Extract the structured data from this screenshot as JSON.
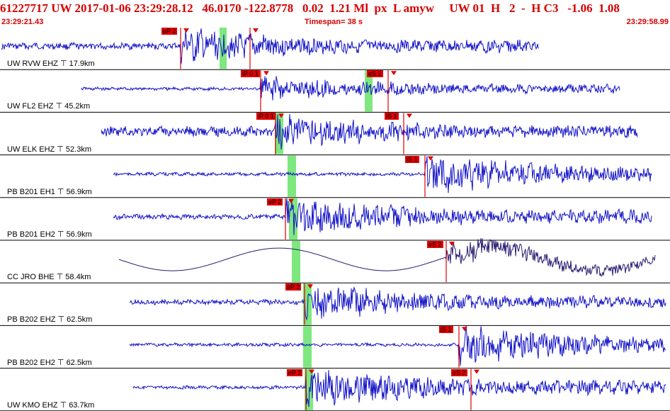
{
  "header": {
    "event_line": "61227717 UW 2017-01-06 23:29:28.12   46.0170 -122.8778   0.02  1.21 Ml  px  L amyw     UW 01  H   2  -  H C3   -1.06  1.08",
    "start_time": "23:29:21.43",
    "timespan": "Timespan=  38 s",
    "end_time": "23:29:58.99"
  },
  "colors": {
    "header_text": "#d80000",
    "waveform": "#1414c8",
    "waveform_dark": "#2a1a70",
    "coda_band": "#7ee87e",
    "pick_line": "#e00000",
    "pick_box": "#e00000"
  },
  "traces": [
    {
      "label": "UW RVW EHZ",
      "distance": "17.9km",
      "picks": [
        {
          "label": "eP 2"
        },
        {
          "label": ""
        }
      ]
    },
    {
      "label": "UW FL2 EHZ",
      "distance": "45.2km",
      "picks": [
        {
          "label": "iP 0 1"
        },
        {
          "label": "eS 2"
        }
      ]
    },
    {
      "label": "UW ELK EHZ",
      "distance": "52.3km",
      "picks": [
        {
          "label": "iP 0 1"
        },
        {
          "label": "iS 1"
        }
      ]
    },
    {
      "label": "PB B201 EH1",
      "distance": "56.9km",
      "picks": [
        {
          "label": "iS 1"
        }
      ]
    },
    {
      "label": "PB B201 EH2",
      "distance": "56.9km",
      "picks": [
        {
          "label": "eP 2"
        }
      ]
    },
    {
      "label": "CC JRO BHE",
      "distance": "58.4km",
      "picks": [
        {
          "label": "eS 2"
        }
      ]
    },
    {
      "label": "PB B202 EHZ",
      "distance": "62.5km",
      "picks": [
        {
          "label": "eP 2"
        }
      ]
    },
    {
      "label": "PB B202 EH2",
      "distance": "62.5km",
      "picks": [
        {
          "label": "iS 1"
        }
      ]
    },
    {
      "label": "UW KMO EHZ",
      "distance": "63.7km",
      "picks": [
        {
          "label": "eP 2"
        },
        {
          "label": "eS 2"
        }
      ]
    }
  ]
}
